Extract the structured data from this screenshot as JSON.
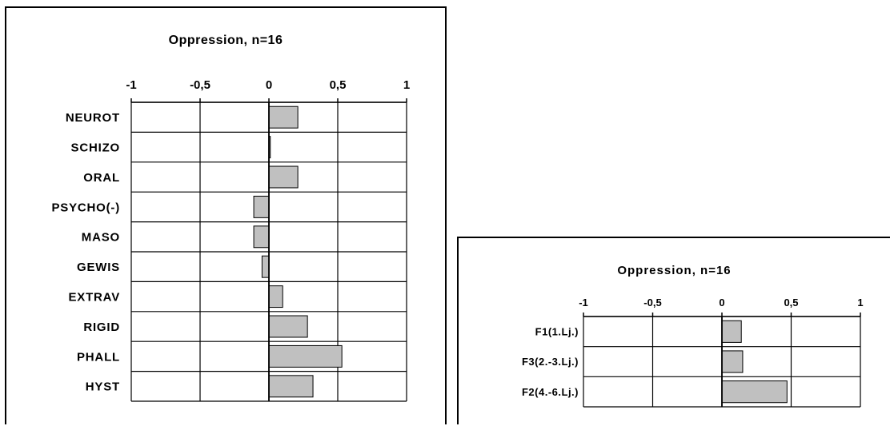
{
  "chart_data": [
    {
      "type": "bar",
      "orientation": "horizontal",
      "title": "Oppression, n=16",
      "xlim": [
        -1,
        1
      ],
      "ticks": [
        "-1",
        "-0,5",
        "0",
        "0,5",
        "1"
      ],
      "tick_values": [
        -1,
        -0.5,
        0,
        0.5,
        1
      ],
      "categories": [
        "NEUROT",
        "SCHIZO",
        "ORAL",
        "PSYCHO(-)",
        "MASO",
        "GEWIS",
        "EXTRAV",
        "RIGID",
        "PHALL",
        "HYST"
      ],
      "values": [
        0.21,
        0.01,
        0.21,
        -0.11,
        -0.11,
        -0.05,
        0.1,
        0.28,
        0.53,
        0.32
      ],
      "grid": true,
      "bar_color": "#c0c0c0"
    },
    {
      "type": "bar",
      "orientation": "horizontal",
      "title": "Oppression, n=16",
      "xlim": [
        -1,
        1
      ],
      "ticks": [
        "-1",
        "-0,5",
        "0",
        "0,5",
        "1"
      ],
      "tick_values": [
        -1,
        -0.5,
        0,
        0.5,
        1
      ],
      "categories": [
        "F1(1.Lj.)",
        "F3(2.-3.Lj.)",
        "F2(4.-6.Lj.)"
      ],
      "values": [
        0.14,
        0.15,
        0.47
      ],
      "grid": true,
      "bar_color": "#c0c0c0"
    }
  ]
}
